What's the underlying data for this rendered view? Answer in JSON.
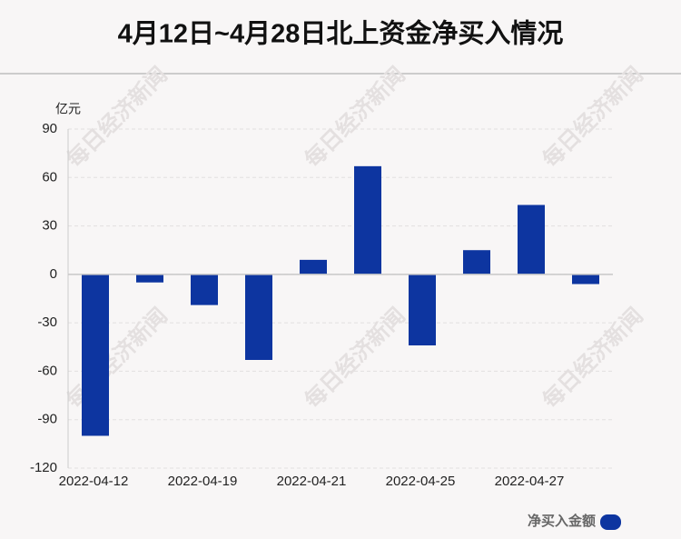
{
  "chart_data": {
    "type": "bar",
    "title": "4月12日~4月28日北上资金净买入情况",
    "y_label": "亿元",
    "watermark": "每日经济新闻",
    "categories": [
      "2022-04-12",
      null,
      "2022-04-19",
      null,
      "2022-04-21",
      null,
      "2022-04-25",
      null,
      "2022-04-27",
      null
    ],
    "series": [
      {
        "name": "净买入金额",
        "color": "#0d35a0",
        "values": [
          -100,
          -5,
          -19,
          -53,
          9,
          67,
          -44,
          15,
          43,
          -6
        ]
      }
    ],
    "ylim": [
      -120,
      90
    ],
    "yticks": [
      -120,
      -90,
      -60,
      -30,
      0,
      30,
      60,
      90
    ],
    "grid": true
  }
}
